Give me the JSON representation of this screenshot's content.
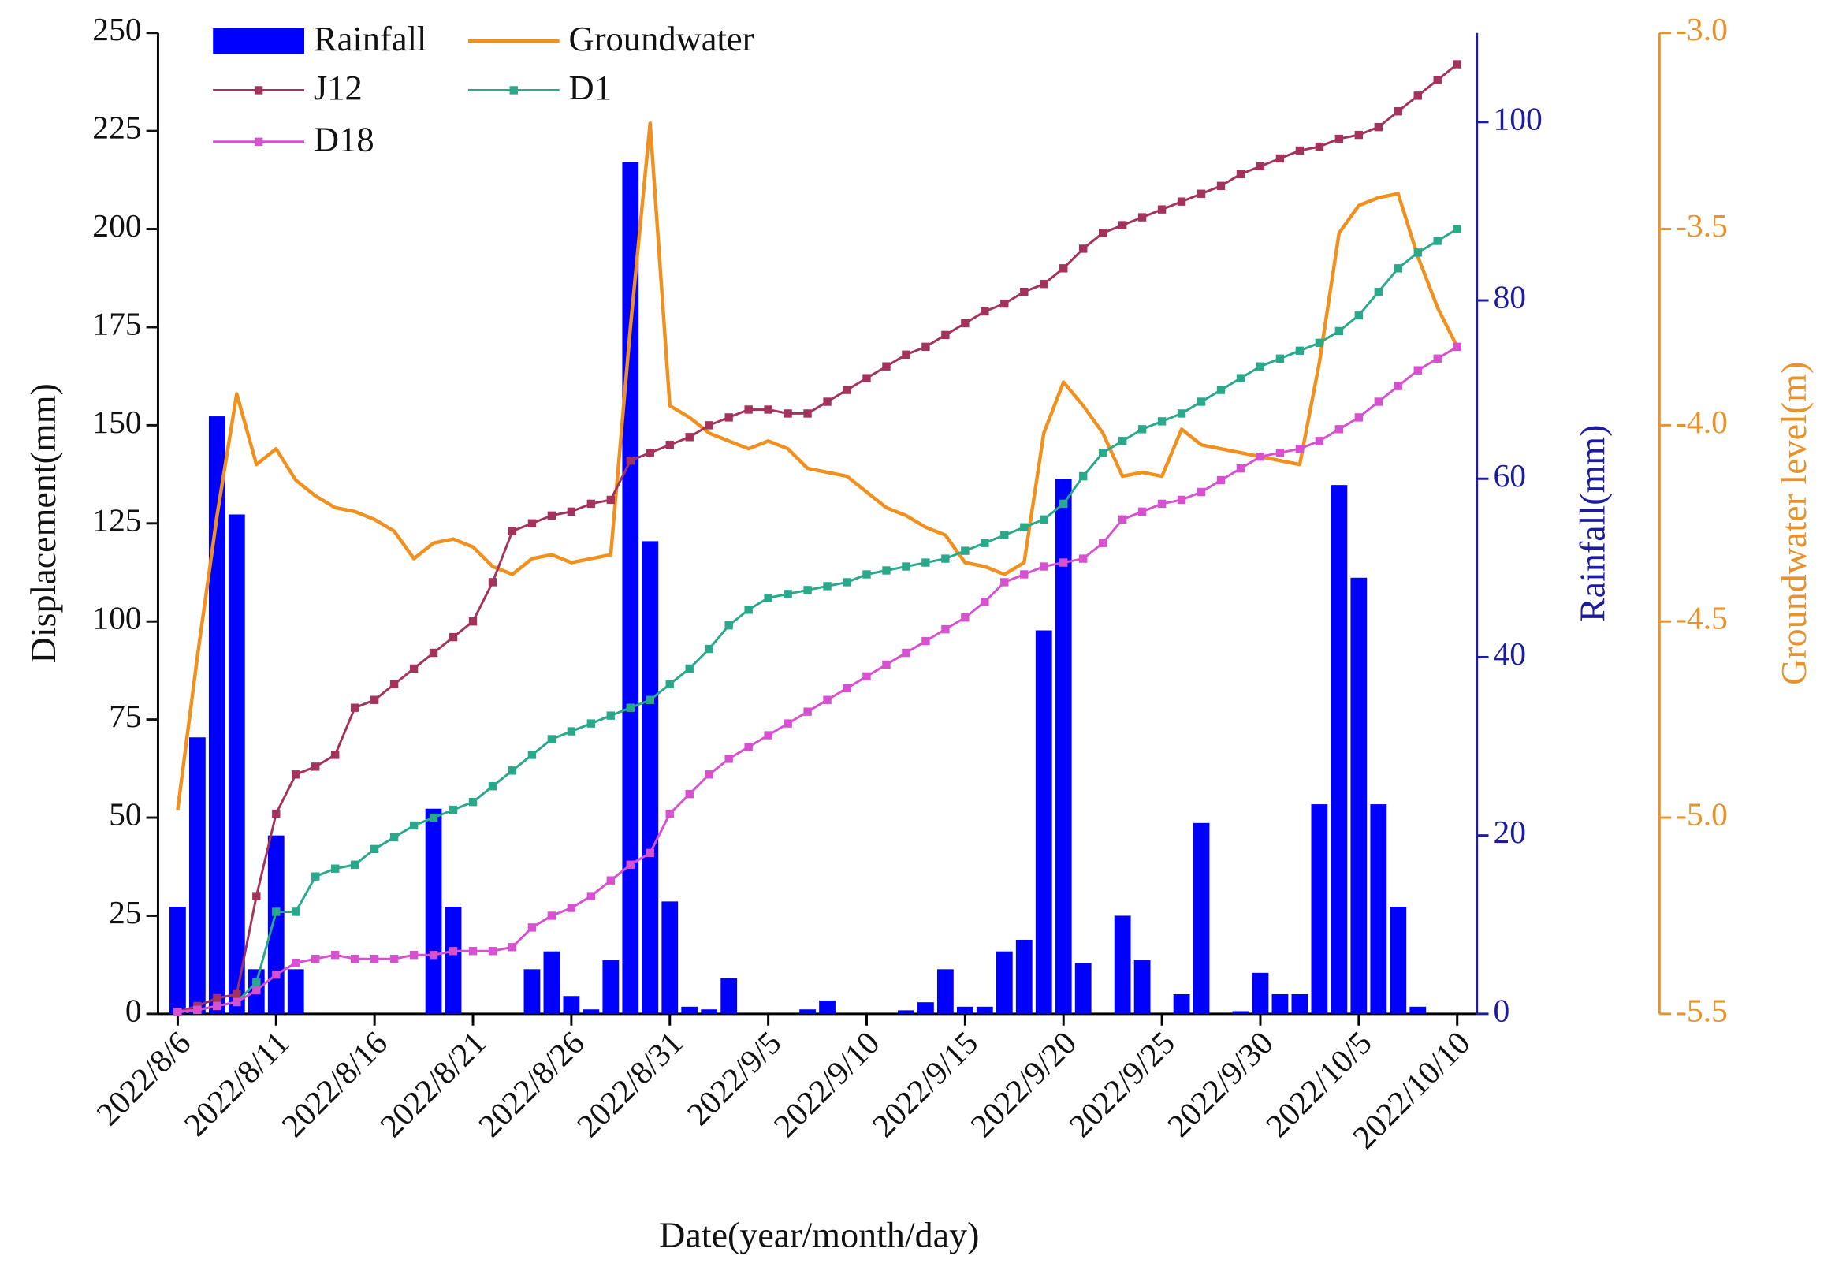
{
  "chart_data": {
    "type": "combo",
    "x_label": "Date(year/month/day)",
    "y_label": "Displacement(mm)",
    "y2_label": "Rainfall(mm)",
    "y3_label": "Groundwater level(m)",
    "categories": [
      "2022/8/6",
      null,
      null,
      null,
      null,
      "2022/8/11",
      null,
      null,
      null,
      null,
      "2022/8/16",
      null,
      null,
      null,
      null,
      "2022/8/21",
      null,
      null,
      null,
      null,
      "2022/8/26",
      null,
      null,
      null,
      null,
      "2022/8/31",
      null,
      null,
      null,
      null,
      "2022/9/5",
      null,
      null,
      null,
      null,
      "2022/9/10",
      null,
      null,
      null,
      null,
      "2022/9/15",
      null,
      null,
      null,
      null,
      "2022/9/20",
      null,
      null,
      null,
      null,
      "2022/9/25",
      null,
      null,
      null,
      null,
      "2022/9/30",
      null,
      null,
      null,
      null,
      "2022/10/5",
      null,
      null,
      null,
      null,
      "2022/10/10"
    ],
    "ylim": [
      0,
      250
    ],
    "yticks": [
      0,
      25,
      50,
      75,
      100,
      125,
      150,
      175,
      200,
      225,
      250
    ],
    "y2lim": [
      0,
      110
    ],
    "y2ticks": [
      0,
      20,
      40,
      60,
      80,
      100
    ],
    "y3lim": [
      -5.5,
      -3.0
    ],
    "y3ticks": [
      -5.5,
      {
        "value": -5.0,
        "label": "-5.0"
      },
      -4.5,
      {
        "value": -4.0,
        "label": "-4.0"
      },
      -3.5,
      {
        "value": -3.0,
        "label": "-3.0"
      }
    ],
    "y2_color": "#1c1c9c",
    "y3_color": "#e8922b",
    "legend": "upper left",
    "series": [
      {
        "name": "Rainfall",
        "type": "bar",
        "axis": "y2",
        "color": "#0000ff",
        "values": [
          12,
          31,
          67,
          56,
          5,
          20,
          5,
          0,
          0,
          0,
          0,
          0,
          0,
          23,
          12,
          0,
          0,
          0,
          5,
          7,
          2,
          0.5,
          6,
          95.5,
          53,
          12.6,
          0.8,
          0.5,
          4,
          0,
          0,
          0,
          0.5,
          1.5,
          0,
          0,
          0,
          0.4,
          1.3,
          5,
          0.8,
          0.8,
          7,
          8.3,
          43,
          60,
          5.7,
          0,
          11,
          6,
          0,
          2.2,
          21.4,
          0,
          0.3,
          4.6,
          2.2,
          2.2,
          23.5,
          59.3,
          48.9,
          23.5,
          12,
          0.8,
          0,
          0
        ]
      },
      {
        "name": "Groundwater",
        "type": "line",
        "axis": "y3",
        "color": "#f0901e",
        "values": [
          -4.98,
          -4.59,
          -4.23,
          -3.92,
          -4.1,
          -4.06,
          -4.14,
          -4.18,
          -4.21,
          -4.22,
          -4.24,
          -4.27,
          -4.34,
          -4.3,
          -4.29,
          -4.31,
          -4.36,
          -4.38,
          -4.34,
          -4.33,
          -4.35,
          -4.34,
          -4.33,
          -3.75,
          -3.23,
          -3.95,
          -3.98,
          -4.02,
          -4.04,
          -4.06,
          -4.04,
          -4.06,
          -4.11,
          -4.12,
          -4.13,
          -4.17,
          -4.21,
          -4.23,
          -4.26,
          -4.28,
          -4.35,
          -4.36,
          -4.38,
          -4.35,
          -4.02,
          -3.89,
          -3.95,
          -4.02,
          -4.13,
          -4.12,
          -4.13,
          -4.01,
          -4.05,
          -4.06,
          -4.07,
          -4.08,
          -4.09,
          -4.1,
          -3.84,
          -3.51,
          -3.44,
          -3.42,
          -3.41,
          -3.57,
          -3.7,
          -3.8
        ]
      },
      {
        "name": "J12",
        "type": "line",
        "marker": "square",
        "color": "#a3325c",
        "values": [
          0.5,
          2,
          4,
          5,
          30,
          51,
          61,
          63,
          66,
          78,
          80,
          84,
          88,
          92,
          96,
          100,
          110,
          123,
          125,
          127,
          128,
          130,
          131,
          141,
          143,
          145,
          147,
          150,
          152,
          154,
          154,
          153,
          153,
          156,
          159,
          162,
          165,
          168,
          170,
          173,
          176,
          179,
          181,
          184,
          186,
          190,
          195,
          199,
          201,
          203,
          205,
          207,
          209,
          211,
          214,
          216,
          218,
          220,
          221,
          223,
          224,
          226,
          230,
          234,
          238,
          242
        ]
      },
      {
        "name": "D1",
        "type": "line",
        "marker": "square",
        "color": "#2aa88a",
        "values": [
          0.5,
          1,
          2,
          3,
          8,
          26,
          26,
          35,
          37,
          38,
          42,
          45,
          48,
          50,
          52,
          54,
          58,
          62,
          66,
          70,
          72,
          74,
          76,
          78,
          80,
          84,
          88,
          93,
          99,
          103,
          106,
          107,
          108,
          109,
          110,
          112,
          113,
          114,
          115,
          116,
          118,
          120,
          122,
          124,
          126,
          130,
          137,
          143,
          146,
          149,
          151,
          153,
          156,
          159,
          162,
          165,
          167,
          169,
          171,
          174,
          178,
          184,
          190,
          194,
          197,
          200
        ]
      },
      {
        "name": "D18",
        "type": "line",
        "marker": "square",
        "color": "#d650d0",
        "values": [
          0.5,
          1,
          2,
          3,
          6,
          10,
          13,
          14,
          15,
          14,
          14,
          14,
          15,
          15,
          16,
          16,
          16,
          17,
          22,
          25,
          27,
          30,
          34,
          38,
          41,
          51,
          56,
          61,
          65,
          68,
          71,
          74,
          77,
          80,
          83,
          86,
          89,
          92,
          95,
          98,
          101,
          105,
          110,
          112,
          114,
          115,
          116,
          120,
          126,
          128,
          130,
          131,
          133,
          136,
          139,
          142,
          143,
          144,
          146,
          149,
          152,
          156,
          160,
          164,
          167,
          170
        ]
      }
    ]
  }
}
